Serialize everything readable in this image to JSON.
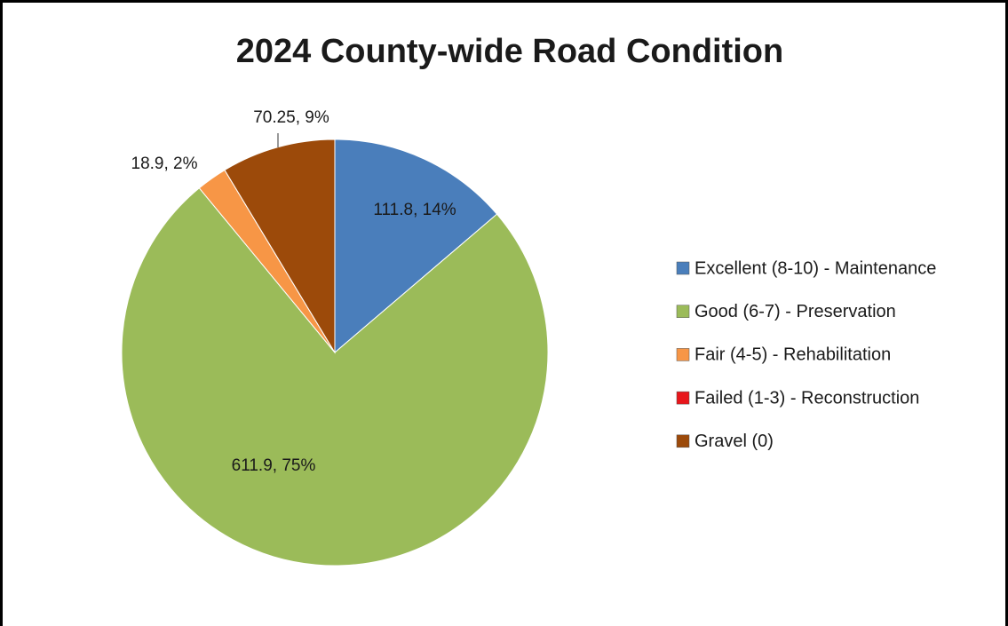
{
  "chart_data": {
    "type": "pie",
    "title": "2024 County-wide Road Condition",
    "categories": [
      "Excellent (8-10) - Maintenance",
      "Good (6-7) - Preservation",
      "Fair (4-5) - Rehabilitation",
      "Failed (1-3) - Reconstruction",
      "Gravel (0)"
    ],
    "values": [
      111.8,
      611.9,
      18.9,
      0,
      70.25
    ],
    "value_labels": [
      "111.8, 14%",
      "611.9, 75%",
      "18.9, 2%",
      null,
      "70.25, 9%"
    ],
    "colors": [
      "#4a7ebb",
      "#9bbb59",
      "#f79646",
      "#e8161b",
      "#9c4a0a"
    ],
    "legend": "right"
  }
}
